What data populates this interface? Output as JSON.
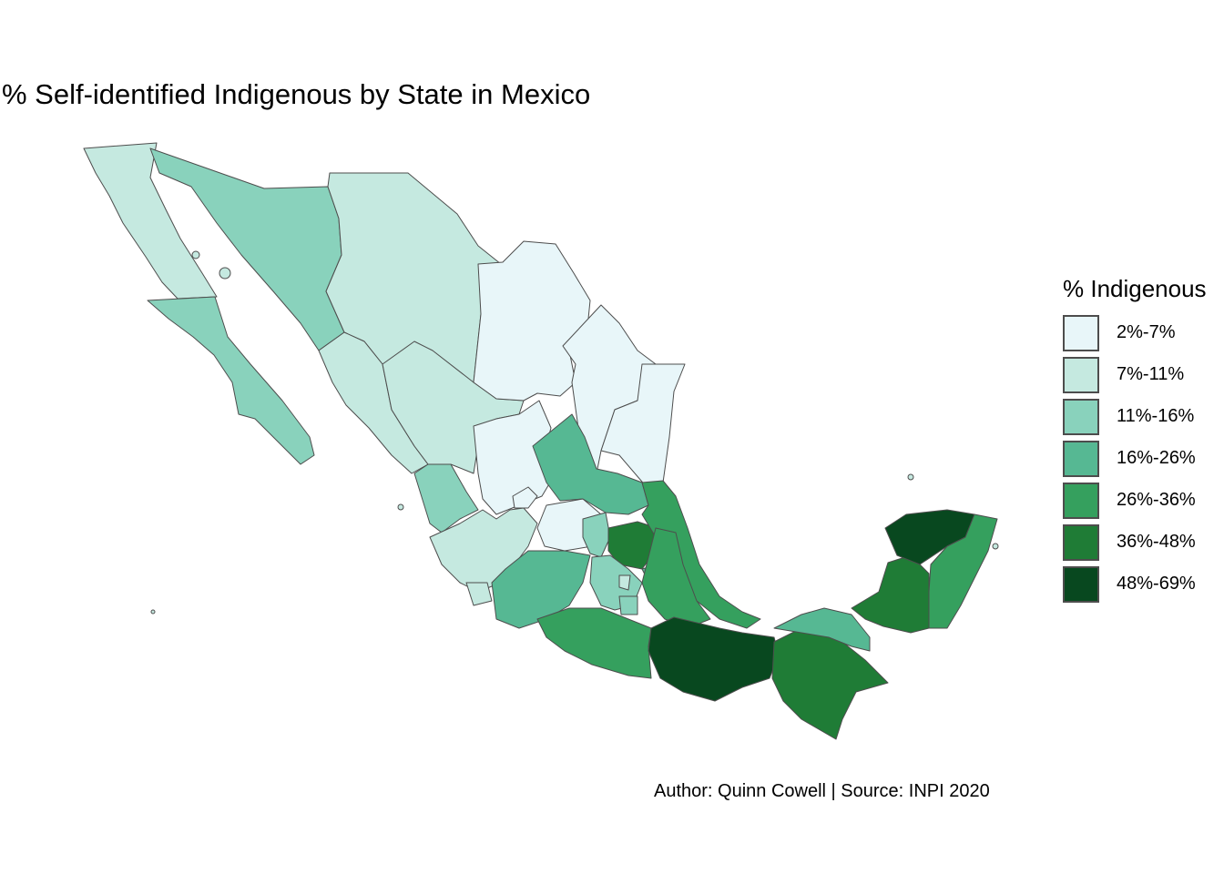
{
  "map": {
    "title": "% Self-identified Indigenous by State in Mexico",
    "caption": "Author: Quinn Cowell | Source: INPI 2020",
    "legend": {
      "title": "% Indigenous",
      "bins": [
        {
          "label": "2%-7%",
          "color": "#e8f6f9"
        },
        {
          "label": "7%-11%",
          "color": "#c5e9e0"
        },
        {
          "label": "11%-16%",
          "color": "#89d2bc"
        },
        {
          "label": "16%-26%",
          "color": "#56b893"
        },
        {
          "label": "26%-36%",
          "color": "#35a05e"
        },
        {
          "label": "36%-48%",
          "color": "#1f7c36"
        },
        {
          "label": "48%-69%",
          "color": "#08481f"
        }
      ]
    },
    "states": [
      {
        "name": "baja-california",
        "bin": 1
      },
      {
        "name": "sonora",
        "bin": 2
      },
      {
        "name": "chihuahua",
        "bin": 1
      },
      {
        "name": "baja-california-sur",
        "bin": 2
      },
      {
        "name": "sinaloa",
        "bin": 1
      },
      {
        "name": "durango",
        "bin": 1
      },
      {
        "name": "coahuila",
        "bin": 0
      },
      {
        "name": "nuevo-leon",
        "bin": 0
      },
      {
        "name": "tamaulipas",
        "bin": 0
      },
      {
        "name": "zacatecas",
        "bin": 0
      },
      {
        "name": "nayarit",
        "bin": 2
      },
      {
        "name": "jalisco",
        "bin": 1
      },
      {
        "name": "aguascalientes",
        "bin": 0
      },
      {
        "name": "guanajuato",
        "bin": 0
      },
      {
        "name": "san-luis-potosi",
        "bin": 3
      },
      {
        "name": "queretaro",
        "bin": 2
      },
      {
        "name": "hidalgo",
        "bin": 5
      },
      {
        "name": "veracruz",
        "bin": 4
      },
      {
        "name": "michoacan",
        "bin": 3
      },
      {
        "name": "colima",
        "bin": 1
      },
      {
        "name": "mexico-state",
        "bin": 2
      },
      {
        "name": "cdmx",
        "bin": 1
      },
      {
        "name": "morelos",
        "bin": 2
      },
      {
        "name": "tlaxcala",
        "bin": 3
      },
      {
        "name": "puebla",
        "bin": 4
      },
      {
        "name": "guerrero",
        "bin": 4
      },
      {
        "name": "oaxaca",
        "bin": 6
      },
      {
        "name": "chiapas",
        "bin": 5
      },
      {
        "name": "tabasco",
        "bin": 3
      },
      {
        "name": "campeche",
        "bin": 5
      },
      {
        "name": "yucatan",
        "bin": 6
      },
      {
        "name": "quintana-roo",
        "bin": 4
      }
    ]
  }
}
